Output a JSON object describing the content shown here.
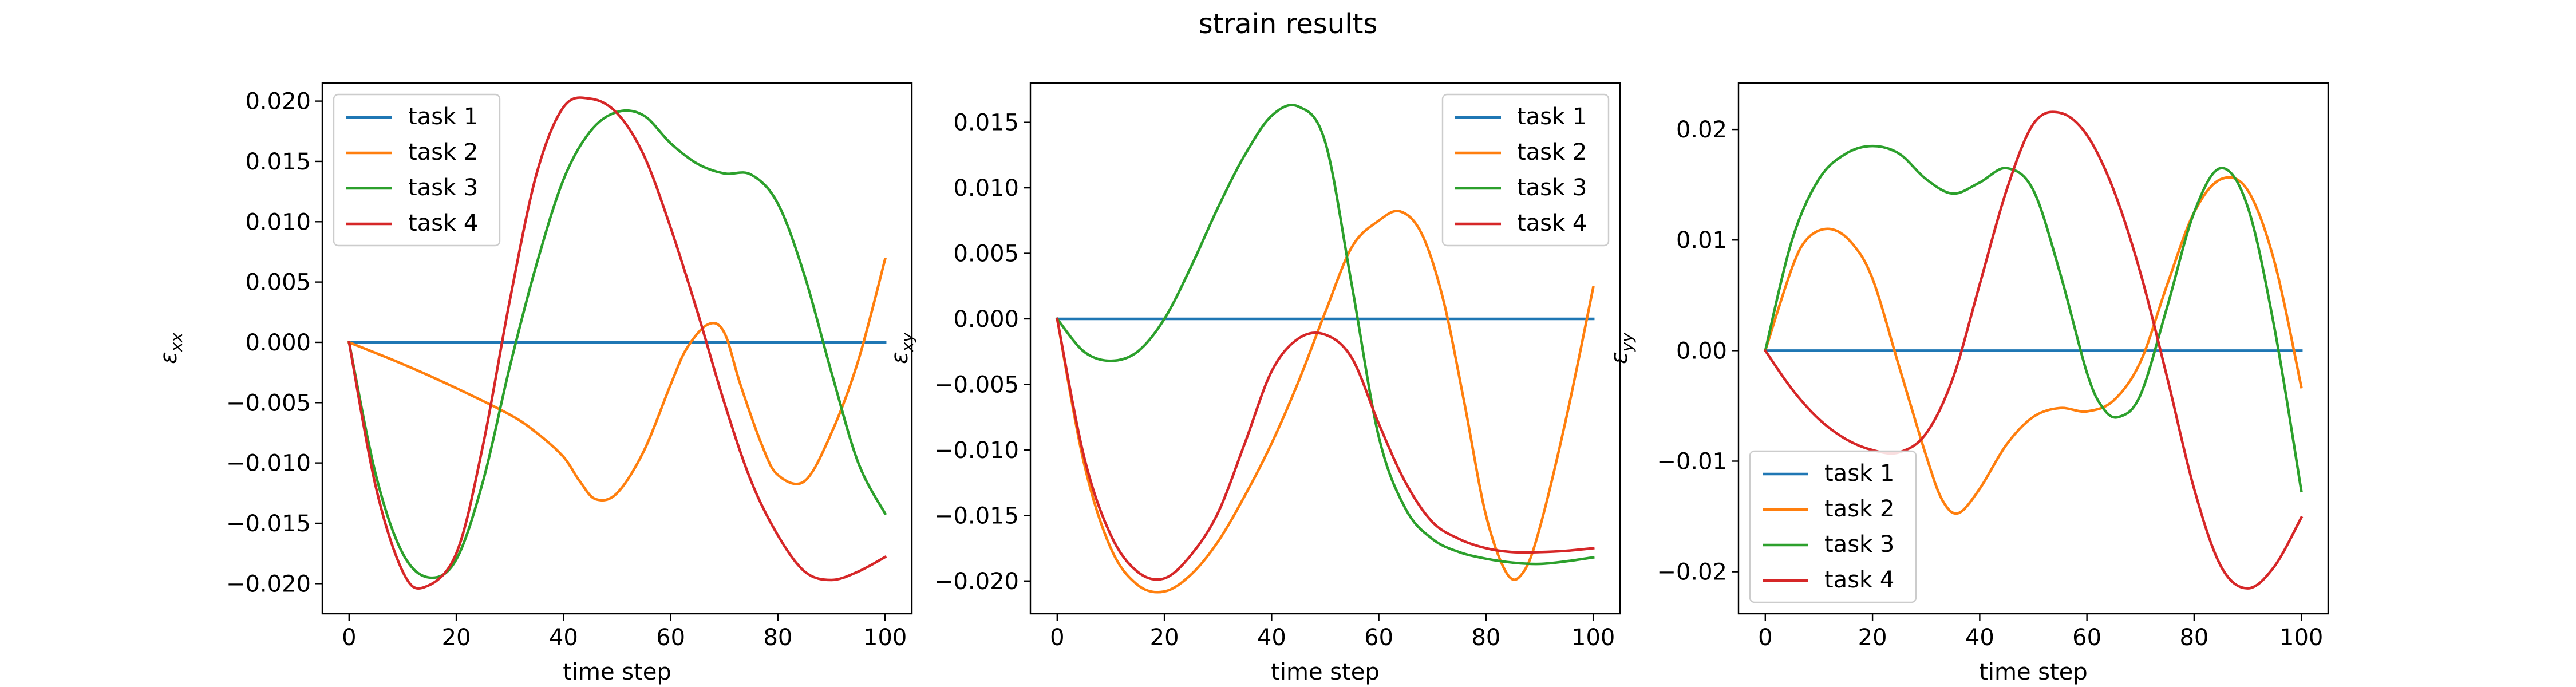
{
  "figure_title": "strain results",
  "chart_data": [
    {
      "type": "line",
      "title": "",
      "xlabel": "time step",
      "ylabel": "ε_xx",
      "ylabel_main": "ε",
      "ylabel_sub": "xx",
      "xlim": [
        -5,
        105
      ],
      "ylim": [
        -0.0225,
        0.0215
      ],
      "xticks": [
        0,
        20,
        40,
        60,
        80,
        100
      ],
      "yticks": [
        -0.02,
        -0.015,
        -0.01,
        -0.005,
        0.0,
        0.005,
        0.01,
        0.015,
        0.02
      ],
      "ytick_labels": [
        "−0.020",
        "−0.015",
        "−0.010",
        "−0.005",
        "0.000",
        "0.005",
        "0.010",
        "0.015",
        "0.020"
      ],
      "grid": false,
      "legend_position": "upper left",
      "series": [
        {
          "name": "task 1",
          "color": "#1f77b4",
          "x": [
            0,
            100
          ],
          "y": [
            0.0,
            0.0
          ]
        },
        {
          "name": "task 2",
          "color": "#ff7f0e",
          "x": [
            0,
            10,
            20,
            30,
            35,
            40,
            43,
            46,
            50,
            55,
            60,
            63,
            67,
            70,
            73,
            77,
            80,
            85,
            90,
            95,
            100
          ],
          "y": [
            0.0,
            -0.0018,
            -0.0038,
            -0.006,
            -0.0075,
            -0.0095,
            -0.0115,
            -0.013,
            -0.0125,
            -0.009,
            -0.0035,
            -0.0005,
            0.0015,
            0.0008,
            -0.0035,
            -0.0085,
            -0.011,
            -0.0115,
            -0.0075,
            -0.0015,
            0.0069
          ]
        },
        {
          "name": "task 3",
          "color": "#2ca02c",
          "x": [
            0,
            5,
            10,
            15,
            20,
            25,
            30,
            35,
            40,
            45,
            50,
            55,
            60,
            65,
            70,
            75,
            80,
            85,
            90,
            95,
            100
          ],
          "y": [
            0.0,
            -0.011,
            -0.0175,
            -0.0195,
            -0.018,
            -0.0115,
            -0.002,
            0.0065,
            0.0135,
            0.0175,
            0.0191,
            0.0188,
            0.0165,
            0.0148,
            0.014,
            0.0139,
            0.0115,
            0.0055,
            -0.0025,
            -0.01,
            -0.0142
          ]
        },
        {
          "name": "task 4",
          "color": "#d62728",
          "x": [
            0,
            5,
            10,
            14,
            20,
            25,
            30,
            35,
            40,
            45,
            50,
            55,
            60,
            65,
            70,
            75,
            80,
            85,
            90,
            95,
            100
          ],
          "y": [
            0.0,
            -0.012,
            -0.019,
            -0.0203,
            -0.0175,
            -0.0085,
            0.0035,
            0.014,
            0.0195,
            0.0202,
            0.019,
            0.0155,
            0.0095,
            0.0025,
            -0.005,
            -0.0115,
            -0.016,
            -0.019,
            -0.0197,
            -0.019,
            -0.0178
          ]
        }
      ]
    },
    {
      "type": "line",
      "title": "",
      "xlabel": "time step",
      "ylabel": "ε_xy",
      "ylabel_main": "ε",
      "ylabel_sub": "xy",
      "xlim": [
        -5,
        105
      ],
      "ylim": [
        -0.0225,
        0.018
      ],
      "xticks": [
        0,
        20,
        40,
        60,
        80,
        100
      ],
      "yticks": [
        -0.02,
        -0.015,
        -0.01,
        -0.005,
        0.0,
        0.005,
        0.01,
        0.015
      ],
      "ytick_labels": [
        "−0.020",
        "−0.015",
        "−0.010",
        "−0.005",
        "0.000",
        "0.005",
        "0.010",
        "0.015"
      ],
      "grid": false,
      "legend_position": "upper right",
      "series": [
        {
          "name": "task 1",
          "color": "#1f77b4",
          "x": [
            0,
            100
          ],
          "y": [
            0.0,
            0.0
          ]
        },
        {
          "name": "task 2",
          "color": "#ff7f0e",
          "x": [
            0,
            5,
            10,
            15,
            20,
            25,
            30,
            35,
            40,
            45,
            50,
            55,
            60,
            64,
            68,
            72,
            76,
            80,
            84,
            87,
            90,
            95,
            100
          ],
          "y": [
            0.0,
            -0.011,
            -0.0175,
            -0.0203,
            -0.0208,
            -0.0195,
            -0.017,
            -0.0135,
            -0.0095,
            -0.0048,
            0.0005,
            0.0055,
            0.0075,
            0.0082,
            0.0065,
            0.0015,
            -0.0065,
            -0.015,
            -0.0195,
            -0.0193,
            -0.016,
            -0.0075,
            0.0024
          ]
        },
        {
          "name": "task 3",
          "color": "#2ca02c",
          "x": [
            0,
            5,
            10,
            15,
            20,
            25,
            30,
            35,
            40,
            45,
            50,
            55,
            60,
            65,
            70,
            75,
            80,
            85,
            90,
            95,
            100
          ],
          "y": [
            0.0,
            -0.0025,
            -0.0032,
            -0.0025,
            0.0,
            0.004,
            0.0085,
            0.0125,
            0.0155,
            0.0162,
            0.0135,
            0.0025,
            -0.009,
            -0.0145,
            -0.0168,
            -0.0178,
            -0.0183,
            -0.0186,
            -0.0187,
            -0.0185,
            -0.0182
          ]
        },
        {
          "name": "task 4",
          "color": "#d62728",
          "x": [
            0,
            5,
            10,
            15,
            20,
            25,
            30,
            35,
            40,
            45,
            50,
            55,
            60,
            65,
            70,
            75,
            80,
            85,
            90,
            95,
            100
          ],
          "y": [
            0.0,
            -0.0105,
            -0.0165,
            -0.0193,
            -0.0198,
            -0.018,
            -0.0148,
            -0.0095,
            -0.004,
            -0.0015,
            -0.0012,
            -0.003,
            -0.008,
            -0.0125,
            -0.0155,
            -0.0168,
            -0.0175,
            -0.0178,
            -0.0178,
            -0.0177,
            -0.0175
          ]
        }
      ]
    },
    {
      "type": "line",
      "title": "",
      "xlabel": "time step",
      "ylabel": "ε_yy",
      "ylabel_main": "ε",
      "ylabel_sub": "yy",
      "xlim": [
        -5,
        105
      ],
      "ylim": [
        -0.0238,
        0.0242
      ],
      "xticks": [
        0,
        20,
        40,
        60,
        80,
        100
      ],
      "yticks": [
        -0.02,
        -0.01,
        0.0,
        0.01,
        0.02
      ],
      "ytick_labels": [
        "−0.02",
        "−0.01",
        "0.00",
        "0.01",
        "0.02"
      ],
      "grid": false,
      "legend_position": "lower left",
      "series": [
        {
          "name": "task 1",
          "color": "#1f77b4",
          "x": [
            0,
            100
          ],
          "y": [
            0.0,
            0.0
          ]
        },
        {
          "name": "task 2",
          "color": "#ff7f0e",
          "x": [
            0,
            5,
            8,
            12,
            16,
            20,
            25,
            30,
            33,
            36,
            40,
            45,
            50,
            55,
            60,
            65,
            70,
            75,
            80,
            85,
            90,
            95,
            100
          ],
          "y": [
            0.0,
            0.0075,
            0.0102,
            0.011,
            0.0098,
            0.0065,
            -0.0015,
            -0.0095,
            -0.0135,
            -0.0147,
            -0.0125,
            -0.0085,
            -0.006,
            -0.0052,
            -0.0055,
            -0.0045,
            -0.001,
            0.006,
            0.0125,
            0.0155,
            0.0145,
            0.008,
            -0.0033
          ]
        },
        {
          "name": "task 3",
          "color": "#2ca02c",
          "x": [
            0,
            5,
            10,
            15,
            20,
            25,
            30,
            35,
            40,
            45,
            50,
            55,
            60,
            63,
            66,
            70,
            75,
            80,
            85,
            90,
            95,
            100
          ],
          "y": [
            0.0,
            0.01,
            0.0155,
            0.0178,
            0.0185,
            0.0178,
            0.0155,
            0.0142,
            0.0152,
            0.0165,
            0.0145,
            0.007,
            -0.002,
            -0.0052,
            -0.006,
            -0.004,
            0.004,
            0.0125,
            0.0165,
            0.013,
            0.002,
            -0.0127
          ]
        },
        {
          "name": "task 4",
          "color": "#d62728",
          "x": [
            0,
            5,
            10,
            15,
            20,
            25,
            30,
            35,
            40,
            45,
            50,
            55,
            60,
            65,
            70,
            75,
            80,
            85,
            90,
            95,
            100
          ],
          "y": [
            0.0,
            -0.0035,
            -0.0062,
            -0.008,
            -0.009,
            -0.0092,
            -0.0075,
            -0.0025,
            0.006,
            0.0145,
            0.0205,
            0.0215,
            0.0195,
            0.0145,
            0.007,
            -0.0025,
            -0.0125,
            -0.0195,
            -0.0215,
            -0.0195,
            -0.0151
          ]
        }
      ]
    }
  ]
}
